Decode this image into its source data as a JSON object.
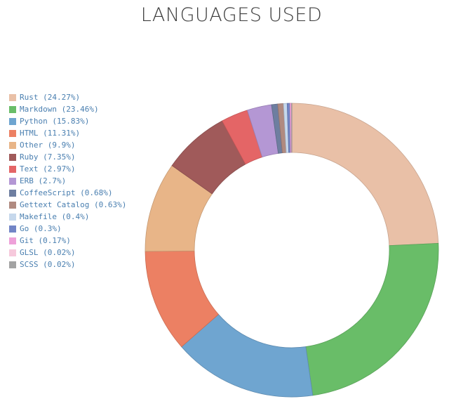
{
  "chart_data": {
    "type": "pie",
    "title": "LANGUAGES USED",
    "slices": [
      {
        "label": "Rust",
        "value": 24.27,
        "legend": "Rust (24.27%)",
        "color": "#e9c0a7"
      },
      {
        "label": "Markdown",
        "value": 23.46,
        "legend": "Markdown (23.46%)",
        "color": "#69bd68"
      },
      {
        "label": "Python",
        "value": 15.83,
        "legend": "Python (15.83%)",
        "color": "#6fa5d0"
      },
      {
        "label": "HTML",
        "value": 11.31,
        "legend": "HTML (11.31%)",
        "color": "#ec8063"
      },
      {
        "label": "Other",
        "value": 9.9,
        "legend": "Other (9.9%)",
        "color": "#e8b588"
      },
      {
        "label": "Ruby",
        "value": 7.35,
        "legend": "Ruby (7.35%)",
        "color": "#a05a5a"
      },
      {
        "label": "Text",
        "value": 2.97,
        "legend": "Text (2.97%)",
        "color": "#e46566"
      },
      {
        "label": "ERB",
        "value": 2.7,
        "legend": "ERB (2.7%)",
        "color": "#b497d4"
      },
      {
        "label": "CoffeeScript",
        "value": 0.68,
        "legend": "CoffeeScript (0.68%)",
        "color": "#6e7ea0"
      },
      {
        "label": "Gettext Catalog",
        "value": 0.63,
        "legend": "Gettext Catalog (0.63%)",
        "color": "#b08a80"
      },
      {
        "label": "Makefile",
        "value": 0.4,
        "legend": "Makefile (0.4%)",
        "color": "#c6d8ec"
      },
      {
        "label": "Go",
        "value": 0.3,
        "legend": "Go (0.3%)",
        "color": "#7285c6"
      },
      {
        "label": "Git",
        "value": 0.17,
        "legend": "Git (0.17%)",
        "color": "#eea1d9"
      },
      {
        "label": "GLSL",
        "value": 0.02,
        "legend": "GLSL (0.02%)",
        "color": "#f6c9dc"
      },
      {
        "label": "SCSS",
        "value": 0.02,
        "legend": "SCSS (0.02%)",
        "color": "#a3a3a3"
      }
    ],
    "legend_position": "left"
  }
}
